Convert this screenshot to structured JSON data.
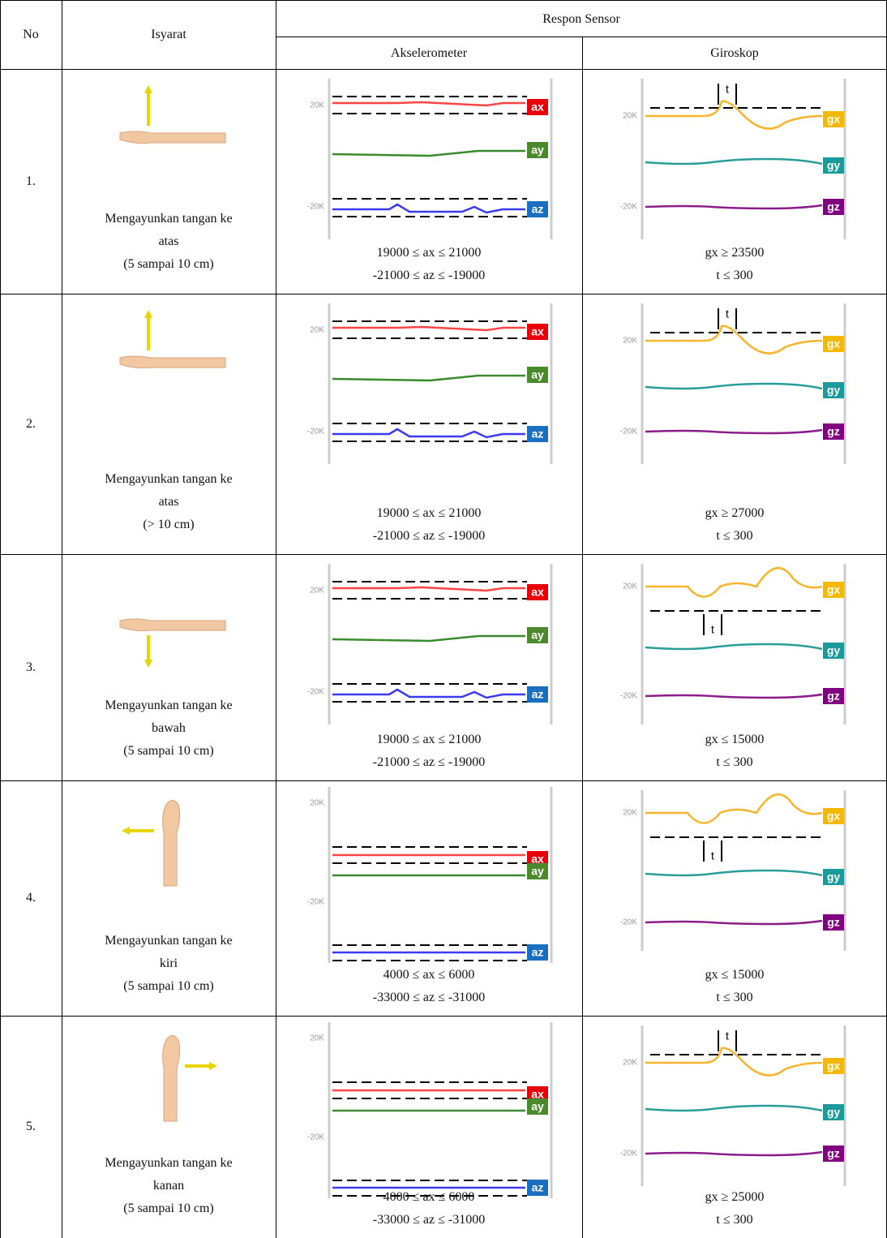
{
  "table": {
    "header": {
      "no": "No",
      "gesture": "Isyarat",
      "response": "Respon Sensor",
      "accelerometer": "Akselerometer",
      "gyroscope": "Giroskop"
    },
    "rows": [
      {
        "no": "1.",
        "gesture": [
          "Mengayunkan tangan ke",
          "atas",
          "(5 sampai 10 cm)"
        ],
        "accel": {
          "labels": [
            "20K",
            "-20K"
          ],
          "tags": [
            "ax",
            "ay",
            "az"
          ],
          "conditions": [
            "19000 ≤ ax ≤ 21000",
            "-21000 ≤ az ≤ -19000"
          ]
        },
        "gyro": {
          "labels": [
            "20K",
            "-20K"
          ],
          "tags": [
            "gx",
            "gy",
            "gz"
          ],
          "marker": "t",
          "conditions": [
            "gx ≥ 23500",
            "t ≤ 300"
          ]
        }
      },
      {
        "no": "2.",
        "gesture": [
          "Mengayunkan tangan ke",
          "atas",
          "(> 10 cm)"
        ],
        "accel": {
          "labels": [
            "20K",
            "-20K"
          ],
          "tags": [
            "ax",
            "ay",
            "az"
          ],
          "conditions": [
            "19000 ≤ ax ≤ 21000",
            "-21000 ≤ az ≤ -19000"
          ]
        },
        "gyro": {
          "labels": [
            "20K",
            "-20K"
          ],
          "tags": [
            "gx",
            "gy",
            "gz"
          ],
          "marker": "t",
          "conditions": [
            "gx ≥ 27000",
            "t ≤ 300"
          ]
        }
      },
      {
        "no": "3.",
        "gesture": [
          "Mengayunkan tangan ke",
          "bawah",
          "(5 sampai 10 cm)"
        ],
        "accel": {
          "labels": [
            "20K",
            "-20K"
          ],
          "tags": [
            "ax",
            "ay",
            "az"
          ],
          "conditions": [
            "19000 ≤ ax ≤ 21000",
            "-21000 ≤ az ≤ -19000"
          ]
        },
        "gyro": {
          "labels": [
            "20K",
            "-20K"
          ],
          "tags": [
            "gx",
            "gy",
            "gz"
          ],
          "marker": "t",
          "conditions": [
            "gx ≤ 15000",
            "t ≤ 300"
          ]
        }
      },
      {
        "no": "4.",
        "gesture": [
          "Mengayunkan tangan ke",
          "kiri",
          "(5 sampai 10 cm)"
        ],
        "accel": {
          "labels": [
            "20K",
            "-20K"
          ],
          "tags": [
            "ax",
            "ay",
            "az"
          ],
          "conditions": [
            "4000 ≤ ax ≤ 6000",
            "-33000 ≤ az ≤ -31000"
          ]
        },
        "gyro": {
          "labels": [
            "20K",
            "-20K"
          ],
          "tags": [
            "gx",
            "gy",
            "gz"
          ],
          "marker": "t",
          "conditions": [
            "gx ≤ 15000",
            "t ≤ 300"
          ]
        }
      },
      {
        "no": "5.",
        "gesture": [
          "Mengayunkan tangan ke",
          "kanan",
          "(5 sampai 10 cm)"
        ],
        "accel": {
          "labels": [
            "20K",
            "-20K"
          ],
          "tags": [
            "ax",
            "ay",
            "az"
          ],
          "conditions": [
            "4000 ≤ ax ≤ 6000",
            "-33000 ≤ az ≤ -31000"
          ]
        },
        "gyro": {
          "labels": [
            "20K",
            "-20K"
          ],
          "tags": [
            "gx",
            "gy",
            "gz"
          ],
          "marker": "t",
          "conditions": [
            "gx ≥ 25000",
            "t ≤ 300"
          ]
        }
      }
    ]
  }
}
